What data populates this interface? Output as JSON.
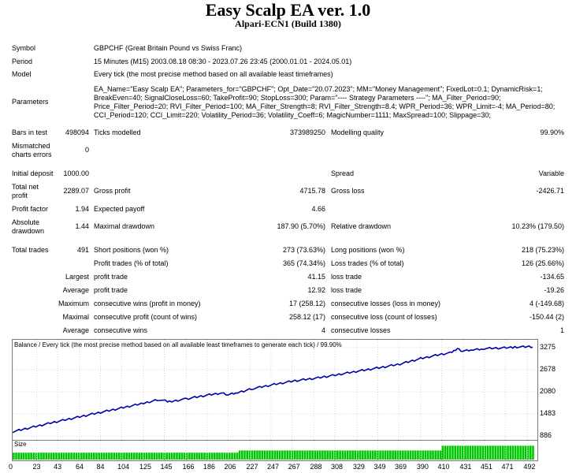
{
  "title": "Easy Scalp EA ver. 1.0",
  "subtitle": "Alpari-ECN1 (Build 1380)",
  "info": {
    "symbol_label": "Symbol",
    "symbol_value": "GBPCHF (Great Britain Pound vs Swiss Franc)",
    "period_label": "Period",
    "period_value": "15 Minutes (M15) 2003.08.18 08:30 - 2023.07.26 23:45 (2000.01.01 - 2024.05.01)",
    "model_label": "Model",
    "model_value": "Every tick (the most precise method based on all available least timeframes)",
    "parameters_label": "Parameters",
    "parameters_lines": [
      "EA_Name=\"Easy Scalp EA\"; Parameters_for=\"GBPCHF\"; Opt_Date=\"20.07.2023\"; MM=\"Money Management\"; FixedLot=0.1; DynamicRisk=1;",
      "BreakEven=40; SignalCloseLoss=60; TakeProfit=90; StopLoss=300; Param=\"---- Strategy Parameters ----\"; MA_Filter_Period=90;",
      "Price_Filter_Period=20; RVI_Filter_Period=100; MA_Filter_Strength=8; RVI_Filter_Strength=8.4; WPR_Period=36; WPR_Limit=-4; MA_Period=80;",
      "CCI_Period=120; CCI_Limit=220; Volatility_Period=36; Volatility_Coeff=6; MagicNumber=1111; MaxSpread=100; Slippage=30;"
    ]
  },
  "stats": {
    "bars_label": "Bars in test",
    "bars_value": "498094",
    "ticks_label": "Ticks modelled",
    "ticks_value": "373989250",
    "quality_label": "Modelling quality",
    "quality_value": "99.90%",
    "mismatched_label_1": "Mismatched",
    "mismatched_label_2": "charts errors",
    "mismatched_value": "0",
    "deposit_label": "Initial deposit",
    "deposit_value": "1000.00",
    "spread_label": "Spread",
    "spread_value": "Variable",
    "netprofit_label_1": "Total net",
    "netprofit_label_2": "profit",
    "netprofit_value": "2289.07",
    "grossprofit_label": "Gross profit",
    "grossprofit_value": "4715.78",
    "grossloss_label": "Gross loss",
    "grossloss_value": "-2426.71",
    "pf_label": "Profit factor",
    "pf_value": "1.94",
    "payoff_label": "Expected payoff",
    "payoff_value": "4.66",
    "absdd_label_1": "Absolute",
    "absdd_label_2": "drawdown",
    "absdd_value": "1.44",
    "maxdd_label": "Maximal drawdown",
    "maxdd_value": "187.90 (5.70%)",
    "reldd_label": "Relative drawdown",
    "reldd_value": "10.23% (179.50)",
    "trades_label": "Total trades",
    "trades_value": "491",
    "short_label": "Short positions (won %)",
    "short_value": "273 (73.63%)",
    "long_label": "Long positions (won %)",
    "long_value": "218 (75.23%)",
    "ptrades_label": "Profit trades (% of total)",
    "ptrades_value": "365 (74.34%)",
    "ltrades_label": "Loss trades (% of total)",
    "ltrades_value": "126 (25.66%)",
    "largest_label": "Largest",
    "largest_p_label": "profit trade",
    "largest_p_value": "41.15",
    "largest_l_label": "loss trade",
    "largest_l_value": "-134.65",
    "average_label": "Average",
    "average_p_label": "profit trade",
    "average_p_value": "12.92",
    "average_l_label": "loss trade",
    "average_l_value": "-19.26",
    "maximum_label": "Maximum",
    "maxwins_label": "consecutive wins (profit in money)",
    "maxwins_value": "17 (258.12)",
    "maxlosses_label": "consecutive losses (loss in money)",
    "maxlosses_value": "4 (-149.68)",
    "maximal_label": "Maximal",
    "maxprofit_label": "consecutive profit (count of wins)",
    "maxprofit_value": "258.12 (17)",
    "maxloss_label": "consecutive loss (count of losses)",
    "maxloss_value": "-150.44 (2)",
    "average2_label": "Average",
    "avgwins_label": "consecutive wins",
    "avgwins_value": "4",
    "avglosses_label": "consecutive losses",
    "avglosses_value": "1"
  },
  "chart_data": {
    "type": "line",
    "title": "Balance / Every tick (the most precise method based on all available least timeframes to generate each tick) / 99.90%",
    "size_label": "Size",
    "y_ticks": [
      "3275",
      "2678",
      "2080",
      "1483",
      "886"
    ],
    "ylim": [
      886,
      3275
    ],
    "x_ticks": [
      "0",
      "23",
      "43",
      "64",
      "84",
      "104",
      "125",
      "145",
      "166",
      "186",
      "206",
      "227",
      "247",
      "267",
      "288",
      "308",
      "329",
      "349",
      "369",
      "390",
      "410",
      "431",
      "451",
      "471",
      "492"
    ],
    "xlim": [
      0,
      497
    ],
    "series": [
      {
        "color": "#0000a8",
        "x": [
          0,
          20,
          40,
          60,
          80,
          100,
          125,
          140,
          150,
          166,
          186,
          200,
          206,
          215,
          230,
          250,
          270,
          290,
          310,
          330,
          350,
          370,
          390,
          410,
          420,
          425,
          430,
          440,
          450,
          470,
          480,
          492,
          497
        ],
        "values": [
          1000,
          1130,
          1260,
          1380,
          1500,
          1620,
          1770,
          1870,
          1810,
          1890,
          1990,
          2050,
          2000,
          2060,
          2170,
          2280,
          2380,
          2450,
          2540,
          2640,
          2730,
          2830,
          2980,
          3100,
          3140,
          3250,
          3180,
          3220,
          3250,
          3270,
          3290,
          3300,
          3290
        ]
      }
    ],
    "size_bars": [
      {
        "from": 0,
        "to": 216,
        "level": 0.44
      },
      {
        "from": 216,
        "to": 410,
        "level": 0.58
      },
      {
        "from": 410,
        "to": 497,
        "level": 0.88
      }
    ],
    "line_color": "#0000a8",
    "bar_color": "#00c800"
  }
}
